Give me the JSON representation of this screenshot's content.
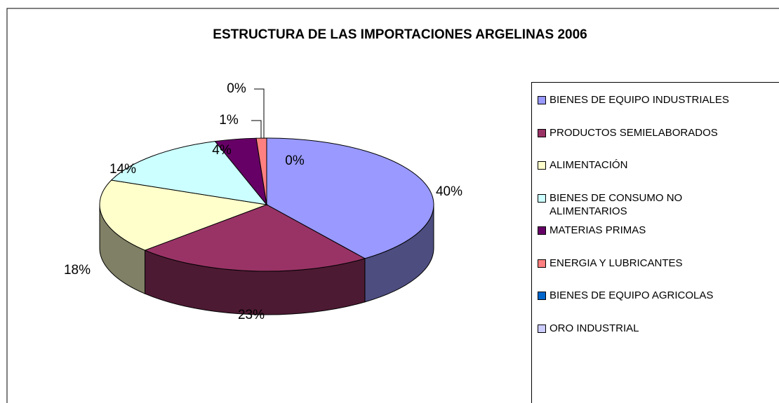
{
  "chart_data": {
    "type": "pie",
    "title": "ESTRUCTURA DE LAS IMPORTACIONES ARGELINAS 2006",
    "categories": [
      "BIENES DE EQUIPO INDUSTRIALES",
      "PRODUCTOS SEMIELABORADOS",
      "ALIMENTACIÓN",
      "BIENES DE CONSUMO NO ALIMENTARIOS",
      "MATERIAS PRIMAS",
      "ENERGIA Y LUBRICANTES",
      "BIENES DE EQUIPO AGRICOLAS",
      "ORO INDUSTRIAL"
    ],
    "values": [
      40,
      23,
      18,
      14,
      4,
      1,
      0,
      0
    ],
    "value_labels": [
      "40%",
      "23%",
      "18%",
      "14%",
      "4%",
      "1%",
      "0%",
      "0%"
    ],
    "colors": [
      "#9999ff",
      "#993366",
      "#ffffcc",
      "#ccffff",
      "#660066",
      "#ff8080",
      "#0066cc",
      "#ccccff"
    ],
    "legend": "right"
  }
}
